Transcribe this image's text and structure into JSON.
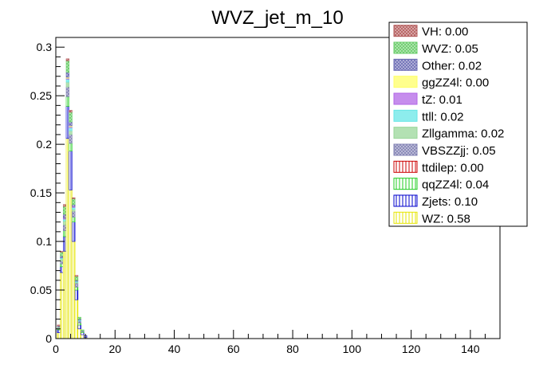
{
  "chart_data": {
    "type": "bar",
    "stacked": true,
    "histogram": true,
    "title": "WVZ_jet_m_10",
    "xlabel": "",
    "ylabel": "",
    "xlim": [
      0,
      150
    ],
    "ylim": [
      0,
      0.31
    ],
    "bin_width": 1,
    "x_ticks": [
      0,
      20,
      40,
      60,
      80,
      100,
      120,
      140
    ],
    "y_ticks": [
      0,
      0.05,
      0.1,
      0.15,
      0.2,
      0.25,
      0.3
    ],
    "y_tick_labels": [
      "0",
      "0.05",
      "0.1",
      "0.15",
      "0.2",
      "0.25",
      "0.3"
    ],
    "grid": false,
    "legend_position": "top-right",
    "legend": [
      {
        "label": "VH: 0.00",
        "color": "#b35959",
        "pattern": "cross"
      },
      {
        "label": "WVZ: 0.05",
        "color": "#66cc66",
        "pattern": "cross"
      },
      {
        "label": "Other: 0.02",
        "color": "#6a6ab3",
        "pattern": "cross"
      },
      {
        "label": "ggZZ4l: 0.00",
        "color": "#ffff66",
        "pattern": "solid"
      },
      {
        "label": "tZ: 0.01",
        "color": "#b366e6",
        "pattern": "solid"
      },
      {
        "label": "ttll: 0.02",
        "color": "#66e6e6",
        "pattern": "solid"
      },
      {
        "label": "Zllgamma: 0.02",
        "color": "#99d699",
        "pattern": "solid"
      },
      {
        "label": "VBSZZjj: 0.05",
        "color": "#8080b3",
        "pattern": "cross"
      },
      {
        "label": "ttdilep: 0.00",
        "color": "#cc0000",
        "pattern": "vlines"
      },
      {
        "label": "qqZZ4l: 0.04",
        "color": "#22cc22",
        "pattern": "vlines"
      },
      {
        "label": "Zjets: 0.10",
        "color": "#0000cc",
        "pattern": "vlines"
      },
      {
        "label": "WZ: 0.58",
        "color": "#e6e600",
        "pattern": "vlines"
      }
    ],
    "x": [
      1,
      2,
      3,
      4,
      5,
      6,
      7,
      8,
      9,
      10
    ],
    "series": [
      {
        "values": [
          0.001,
          0.001,
          0.002,
          0.002,
          0.002,
          0.001,
          0.001,
          0,
          0,
          0
        ]
      },
      {
        "values": [
          0,
          0.004,
          0.008,
          0.012,
          0.01,
          0.006,
          0.004,
          0.002,
          0.001,
          0
        ]
      },
      {
        "values": [
          0.001,
          0.002,
          0.004,
          0.005,
          0.004,
          0.002,
          0.001,
          0.001,
          0,
          0
        ]
      },
      {
        "values": [
          0,
          0,
          0,
          0.001,
          0.001,
          0,
          0,
          0,
          0,
          0
        ]
      },
      {
        "values": [
          0,
          0,
          0.001,
          0.001,
          0.001,
          0.001,
          0,
          0,
          0,
          0
        ]
      },
      {
        "values": [
          0,
          0.001,
          0.002,
          0.003,
          0.003,
          0.002,
          0.001,
          0.001,
          0,
          0
        ]
      },
      {
        "values": [
          0.001,
          0.002,
          0.004,
          0.005,
          0.004,
          0.002,
          0.001,
          0,
          0,
          0
        ]
      },
      {
        "values": [
          0.001,
          0.003,
          0.006,
          0.01,
          0.009,
          0.006,
          0.004,
          0.002,
          0.001,
          0
        ]
      },
      {
        "values": [
          0,
          0,
          0,
          0,
          0,
          0,
          0,
          0,
          0,
          0
        ]
      },
      {
        "values": [
          0.001,
          0.003,
          0.006,
          0.01,
          0.008,
          0.005,
          0.003,
          0.002,
          0.001,
          0
        ]
      },
      {
        "values": [
          0.003,
          0.006,
          0.015,
          0.033,
          0.04,
          0.02,
          0.01,
          0.004,
          0.002,
          0.002
        ]
      },
      {
        "values": [
          0.006,
          0.068,
          0.09,
          0.206,
          0.153,
          0.1,
          0.04,
          0.01,
          0.004,
          0.001
        ]
      }
    ]
  }
}
